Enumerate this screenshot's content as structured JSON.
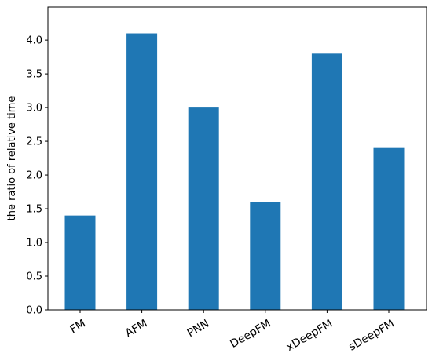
{
  "chart_data": {
    "type": "bar",
    "y_label": "the ratio of relative time",
    "categories": [
      "FM",
      "AFM",
      "PNN",
      "DeepFM",
      "xDeepFM",
      "sDeepFM"
    ],
    "values": [
      1.4,
      4.1,
      3.0,
      1.6,
      3.8,
      2.4
    ],
    "color": "#1f77b4",
    "ylim": [
      0,
      4.49
    ],
    "yticks": [
      {
        "value": 0,
        "label": "0.0"
      },
      {
        "value": 0.5,
        "label": "0.5"
      },
      {
        "value": 1,
        "label": "1.0"
      },
      {
        "value": 1.5,
        "label": "1.5"
      },
      {
        "value": 2,
        "label": "2.0"
      },
      {
        "value": 2.5,
        "label": "2.5"
      },
      {
        "value": 3,
        "label": "3.0"
      },
      {
        "value": 3.5,
        "label": "3.5"
      },
      {
        "value": 4,
        "label": "4.0"
      }
    ],
    "grid": false
  }
}
